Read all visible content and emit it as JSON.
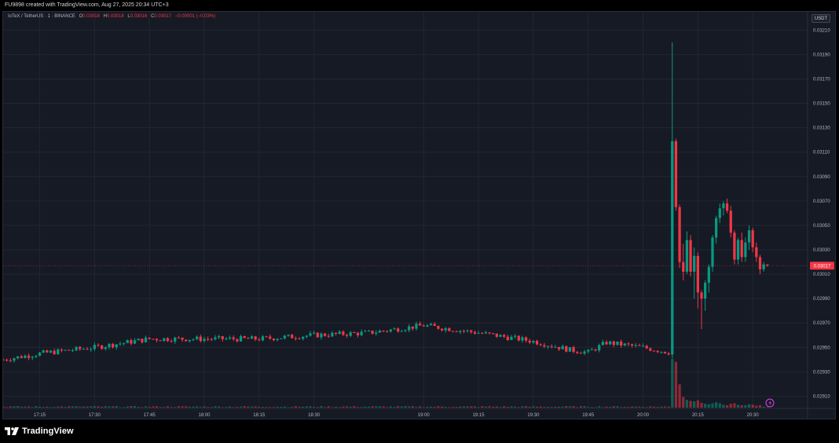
{
  "header": {
    "credit": "FU9898 created with TradingView.com, Aug 27, 2025 20:34 UTC+3"
  },
  "legend": {
    "symbol": "IoTeX / TetherUS · 1 · BINANCE",
    "o_label": "O",
    "o_value": "0.03018",
    "h_label": "H",
    "h_value": "0.03018",
    "l_label": "L",
    "l_value": "0.03016",
    "c_label": "C",
    "c_value": "0.03017",
    "change": "−0.00001 (−0.03%)"
  },
  "currency_button": "USDT",
  "footer": {
    "brand": "TradingView"
  },
  "colors": {
    "up": "#089981",
    "down": "#f23645",
    "background": "#161a25",
    "grid": "#232632",
    "axis_text": "#b2b5be",
    "price_label_bg": "#f23645"
  },
  "chart_data": {
    "type": "candlestick",
    "symbol": "IoTeX / TetherUS",
    "interval": "1",
    "exchange": "BINANCE",
    "last_price": 0.03017,
    "last_price_label": "0.03017",
    "y_ticks": [
      "0.03210",
      "0.03190",
      "0.03170",
      "0.03150",
      "0.03130",
      "0.03110",
      "0.03090",
      "0.03070",
      "0.03050",
      "0.03030",
      "0.03010",
      "0.02990",
      "0.02970",
      "0.02950",
      "0.02930",
      "0.02910"
    ],
    "x_ticks": [
      "17:15",
      "17:30",
      "17:45",
      "18:00",
      "18:15",
      "18:30",
      "19:00",
      "19:15",
      "19:30",
      "19:45",
      "20:00",
      "20:15",
      "20:30"
    ],
    "x_range_minutes": [
      "17:05",
      "20:45"
    ],
    "ylim": [
      0.029,
      0.03225
    ],
    "grid": true,
    "segments_time_close": [
      [
        "17:05",
        0.0294
      ],
      [
        "17:15",
        0.02945
      ],
      [
        "17:30",
        0.0295
      ],
      [
        "17:45",
        0.02957
      ],
      [
        "18:00",
        0.02957
      ],
      [
        "18:15",
        0.02957
      ],
      [
        "18:30",
        0.0296
      ],
      [
        "18:45",
        0.02962
      ],
      [
        "19:00",
        0.02968
      ],
      [
        "19:15",
        0.02962
      ],
      [
        "19:30",
        0.02955
      ],
      [
        "19:40",
        0.02948
      ],
      [
        "19:45",
        0.02946
      ],
      [
        "19:50",
        0.02954
      ],
      [
        "20:00",
        0.0295
      ],
      [
        "20:07",
        0.02946
      ]
    ],
    "spike_candles": [
      {
        "t": "20:08",
        "o": 0.02946,
        "h": 0.032,
        "l": 0.02941,
        "c": 0.03119
      },
      {
        "t": "20:09",
        "o": 0.03119,
        "h": 0.03121,
        "l": 0.03062,
        "c": 0.03065
      },
      {
        "t": "20:10",
        "o": 0.03065,
        "h": 0.03067,
        "l": 0.03015,
        "c": 0.0302
      },
      {
        "t": "20:11",
        "o": 0.0302,
        "h": 0.03035,
        "l": 0.03005,
        "c": 0.03012
      },
      {
        "t": "20:12",
        "o": 0.03012,
        "h": 0.03045,
        "l": 0.0301,
        "c": 0.03038
      },
      {
        "t": "20:13",
        "o": 0.03038,
        "h": 0.03042,
        "l": 0.03008,
        "c": 0.03012
      },
      {
        "t": "20:14",
        "o": 0.03012,
        "h": 0.03032,
        "l": 0.0299,
        "c": 0.03025
      },
      {
        "t": "20:15",
        "o": 0.03025,
        "h": 0.03028,
        "l": 0.02982,
        "c": 0.02995
      },
      {
        "t": "20:16",
        "o": 0.02995,
        "h": 0.02997,
        "l": 0.02965,
        "c": 0.0299
      },
      {
        "t": "20:17",
        "o": 0.0299,
        "h": 0.03005,
        "l": 0.0298,
        "c": 0.03003
      },
      {
        "t": "20:18",
        "o": 0.03003,
        "h": 0.03018,
        "l": 0.02995,
        "c": 0.03016
      },
      {
        "t": "20:19",
        "o": 0.03016,
        "h": 0.03042,
        "l": 0.03012,
        "c": 0.0304
      },
      {
        "t": "20:20",
        "o": 0.0304,
        "h": 0.03058,
        "l": 0.03035,
        "c": 0.03056
      },
      {
        "t": "20:21",
        "o": 0.03056,
        "h": 0.03068,
        "l": 0.03052,
        "c": 0.03064
      },
      {
        "t": "20:22",
        "o": 0.03064,
        "h": 0.0307,
        "l": 0.03058,
        "c": 0.03068
      },
      {
        "t": "20:23",
        "o": 0.03068,
        "h": 0.03072,
        "l": 0.0306,
        "c": 0.03062
      },
      {
        "t": "20:24",
        "o": 0.03062,
        "h": 0.03066,
        "l": 0.0304,
        "c": 0.03044
      },
      {
        "t": "20:25",
        "o": 0.03044,
        "h": 0.03046,
        "l": 0.03018,
        "c": 0.03022
      },
      {
        "t": "20:26",
        "o": 0.03022,
        "h": 0.0304,
        "l": 0.03018,
        "c": 0.03038
      },
      {
        "t": "20:27",
        "o": 0.03038,
        "h": 0.03044,
        "l": 0.0302,
        "c": 0.03024
      },
      {
        "t": "20:28",
        "o": 0.03024,
        "h": 0.0304,
        "l": 0.0302,
        "c": 0.03036
      },
      {
        "t": "20:29",
        "o": 0.03036,
        "h": 0.0305,
        "l": 0.0303,
        "c": 0.03046
      },
      {
        "t": "20:30",
        "o": 0.03046,
        "h": 0.03048,
        "l": 0.03028,
        "c": 0.03032
      },
      {
        "t": "20:31",
        "o": 0.03032,
        "h": 0.03036,
        "l": 0.0302,
        "c": 0.03024
      },
      {
        "t": "20:32",
        "o": 0.03024,
        "h": 0.03026,
        "l": 0.0301,
        "c": 0.03014
      },
      {
        "t": "20:33",
        "o": 0.03014,
        "h": 0.0302,
        "l": 0.03012,
        "c": 0.03018
      },
      {
        "t": "20:34",
        "o": 0.03018,
        "h": 0.03018,
        "l": 0.03016,
        "c": 0.03017
      }
    ],
    "volume_spike": [
      {
        "t": "20:08",
        "v": 1.0,
        "dir": "up"
      },
      {
        "t": "20:09",
        "v": 0.94,
        "dir": "down"
      },
      {
        "t": "20:10",
        "v": 0.48,
        "dir": "down"
      },
      {
        "t": "20:11",
        "v": 0.22,
        "dir": "down"
      },
      {
        "t": "20:12",
        "v": 0.16,
        "dir": "up"
      },
      {
        "t": "20:13",
        "v": 0.14,
        "dir": "down"
      },
      {
        "t": "20:14",
        "v": 0.13,
        "dir": "up"
      },
      {
        "t": "20:15",
        "v": 0.15,
        "dir": "down"
      },
      {
        "t": "20:16",
        "v": 0.1,
        "dir": "down"
      },
      {
        "t": "20:17",
        "v": 0.08,
        "dir": "up"
      },
      {
        "t": "20:18",
        "v": 0.07,
        "dir": "up"
      },
      {
        "t": "20:19",
        "v": 0.09,
        "dir": "up"
      },
      {
        "t": "20:20",
        "v": 0.11,
        "dir": "up"
      },
      {
        "t": "20:21",
        "v": 0.09,
        "dir": "up"
      },
      {
        "t": "20:22",
        "v": 0.06,
        "dir": "up"
      },
      {
        "t": "20:23",
        "v": 0.05,
        "dir": "down"
      },
      {
        "t": "20:24",
        "v": 0.08,
        "dir": "down"
      },
      {
        "t": "20:25",
        "v": 0.09,
        "dir": "down"
      },
      {
        "t": "20:26",
        "v": 0.06,
        "dir": "up"
      },
      {
        "t": "20:27",
        "v": 0.05,
        "dir": "down"
      },
      {
        "t": "20:28",
        "v": 0.05,
        "dir": "up"
      },
      {
        "t": "20:29",
        "v": 0.07,
        "dir": "up"
      },
      {
        "t": "20:30",
        "v": 0.06,
        "dir": "down"
      },
      {
        "t": "20:31",
        "v": 0.04,
        "dir": "down"
      },
      {
        "t": "20:32",
        "v": 0.05,
        "dir": "down"
      },
      {
        "t": "20:33",
        "v": 0.02,
        "dir": "up"
      },
      {
        "t": "20:34",
        "v": 0.01,
        "dir": "down"
      }
    ]
  }
}
